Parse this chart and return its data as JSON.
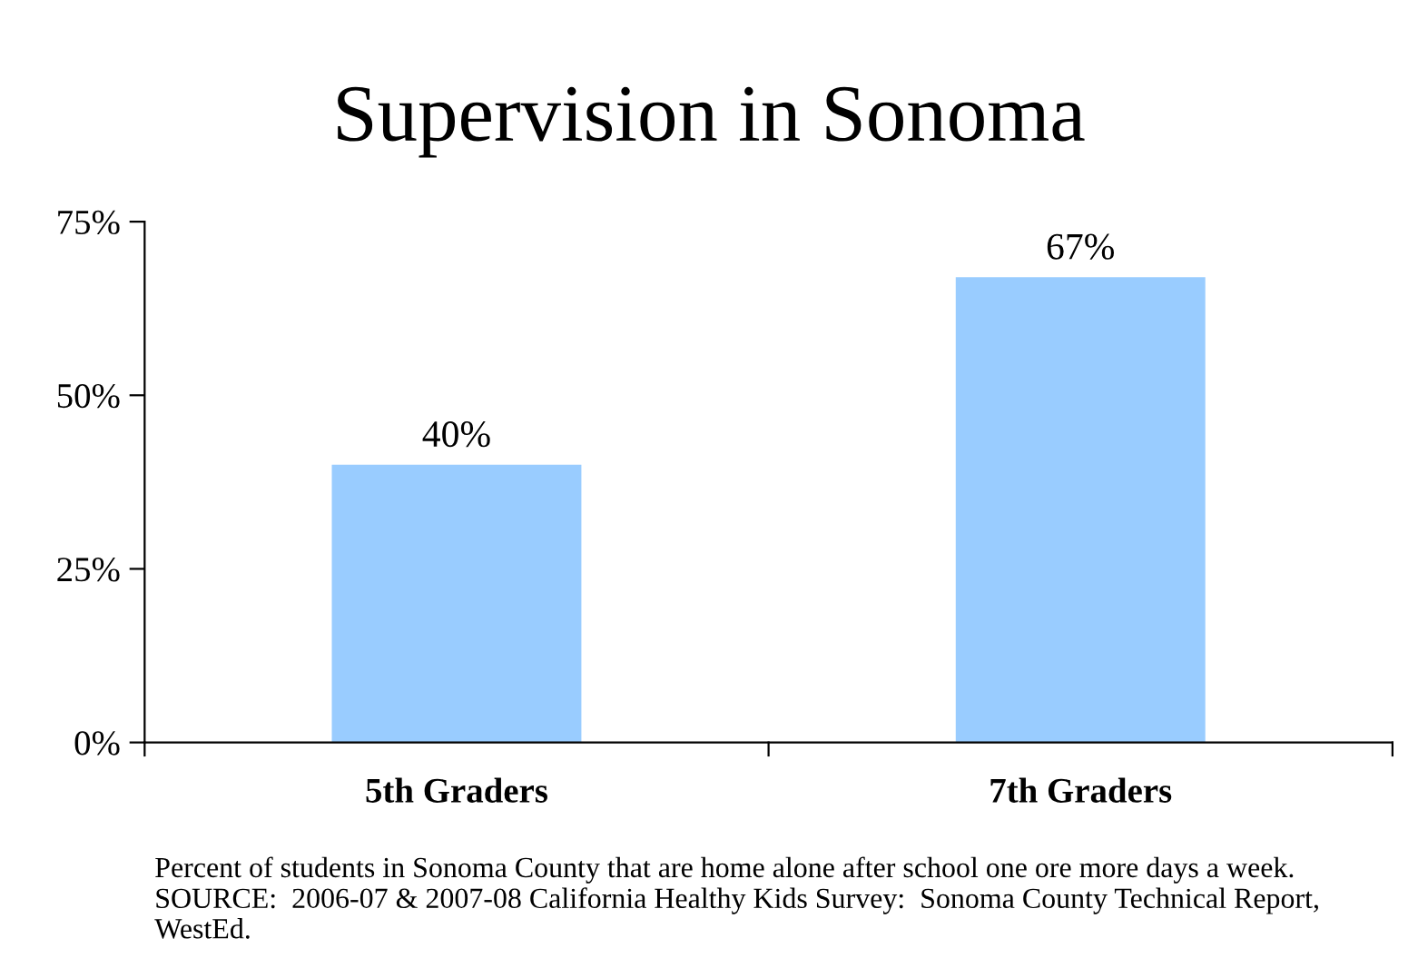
{
  "chart_data": {
    "type": "bar",
    "title": "Supervision in Sonoma",
    "categories": [
      "5th Graders",
      "7th Graders"
    ],
    "values": [
      40,
      67
    ],
    "value_labels": [
      "40%",
      "67%"
    ],
    "color": "#99ccff",
    "ylim": [
      0,
      75
    ],
    "yticks": [
      {
        "value": 0,
        "label": "0%"
      },
      {
        "value": 25,
        "label": "25%"
      },
      {
        "value": 50,
        "label": "50%"
      },
      {
        "value": 75,
        "label": "75%"
      }
    ],
    "annotations": [
      "Percent of students in Sonoma County that are home alone after school one ore more days a week.  SOURCE:  2006-07 & 2007-08 California Healthy Kids Survey:  Sonoma County Technical Report, WestEd."
    ]
  }
}
